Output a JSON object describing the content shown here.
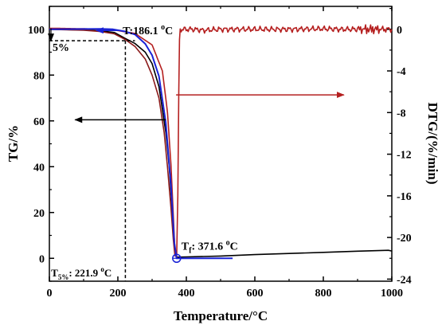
{
  "chart_data": {
    "type": "line",
    "title": "",
    "xlabel": "Temperature/°C",
    "ylabel_left": "TG/%",
    "ylabel_right": "DTG/(%/min)",
    "xlim": [
      0,
      1000
    ],
    "ylim_left": [
      -10,
      110
    ],
    "ylim_right": [
      -24.2,
      2.2
    ],
    "x_ticks": [
      "0",
      "200",
      "400",
      "600",
      "800",
      "1000"
    ],
    "y_left_ticks": [
      "0",
      "20",
      "40",
      "60",
      "80",
      "100"
    ],
    "y_right_ticks": [
      "0",
      "-4",
      "-8",
      "-12",
      "-16",
      "-20",
      "-24"
    ],
    "grid": false,
    "colors": {
      "tg": "#8b1a1a",
      "tg_black": "#000000",
      "dtg": "#b52020",
      "fit": "#1a23d6",
      "arrow_left": "#000000",
      "arrow_right": "#b52020"
    },
    "series": [
      {
        "axis": "left",
        "color": "#000000",
        "points": [
          [
            0,
            100
          ],
          [
            100,
            99.7
          ],
          [
            150,
            99.3
          ],
          [
            190,
            98.6
          ],
          [
            221.9,
            96.0
          ],
          [
            250,
            93.8
          ],
          [
            280,
            90
          ],
          [
            300,
            85
          ],
          [
            320,
            75
          ],
          [
            340,
            55
          ],
          [
            350,
            40
          ],
          [
            360,
            18
          ],
          [
            365,
            5
          ],
          [
            368,
            1.5
          ],
          [
            371.6,
            0.5
          ],
          [
            400,
            0.6
          ],
          [
            500,
            1.0
          ],
          [
            600,
            1.6
          ],
          [
            700,
            2.1
          ],
          [
            800,
            2.6
          ],
          [
            900,
            3.1
          ],
          [
            990,
            3.5
          ],
          [
            1000,
            3.2
          ]
        ]
      },
      {
        "axis": "left",
        "color": "#8b1a1a",
        "points": [
          [
            0,
            100
          ],
          [
            100,
            99.6
          ],
          [
            150,
            99.0
          ],
          [
            190,
            98.0
          ],
          [
            221.9,
            95.5
          ],
          [
            250,
            92.5
          ],
          [
            280,
            87
          ],
          [
            300,
            80
          ],
          [
            320,
            70
          ],
          [
            335,
            55
          ],
          [
            345,
            40
          ],
          [
            355,
            22
          ],
          [
            362,
            8
          ],
          [
            366,
            2
          ],
          [
            368,
            0.8
          ]
        ]
      },
      {
        "axis": "right",
        "color": "#b52020",
        "points": [
          [
            0,
            0.1
          ],
          [
            100,
            0.05
          ],
          [
            186.1,
            -0.05
          ],
          [
            250,
            -0.4
          ],
          [
            300,
            -1.5
          ],
          [
            330,
            -4
          ],
          [
            345,
            -8
          ],
          [
            355,
            -13
          ],
          [
            362,
            -18
          ],
          [
            367,
            -21.5
          ],
          [
            371.6,
            -22.0
          ],
          [
            375,
            -16
          ],
          [
            378,
            -6
          ],
          [
            380,
            -1
          ],
          [
            382,
            0
          ],
          [
            420,
            0
          ],
          [
            450,
            -0.1
          ],
          [
            500,
            0
          ],
          [
            600,
            0
          ],
          [
            700,
            0
          ],
          [
            800,
            0.05
          ],
          [
            850,
            0
          ],
          [
            900,
            0
          ],
          [
            950,
            0
          ],
          [
            1000,
            0
          ]
        ]
      },
      {
        "axis": "right",
        "color": "#1a23d6",
        "points": [
          [
            0,
            0
          ],
          [
            150,
            0.04
          ],
          [
            186.1,
            0
          ],
          [
            220,
            -0.2
          ],
          [
            250,
            -0.5
          ],
          [
            280,
            -1.4
          ],
          [
            300,
            -2.5
          ],
          [
            320,
            -4.5
          ],
          [
            340,
            -9
          ],
          [
            355,
            -15
          ],
          [
            365,
            -20.5
          ],
          [
            371.6,
            -22.0
          ],
          [
            400,
            -22.0
          ],
          [
            535,
            -22.0
          ]
        ]
      }
    ],
    "annotations": {
      "t_label": "T:186.1 ",
      "t_unit": "C",
      "o": "o",
      "tf_base": "T",
      "tf_sub": "f",
      "tf_value": ": 371.6 ",
      "tf_unit": "C",
      "t5_base": "T",
      "t5_sub": "5%",
      "t5_value": ": 221.9 ",
      "t5_unit": "C",
      "five_percent": "5%",
      "t_onset_x": 186.1,
      "t_onset_tg": 99.2,
      "t_final_x": 371.6,
      "t_final_dtg": -22.0,
      "t5_x": 221.9,
      "tg_95": 95
    }
  }
}
